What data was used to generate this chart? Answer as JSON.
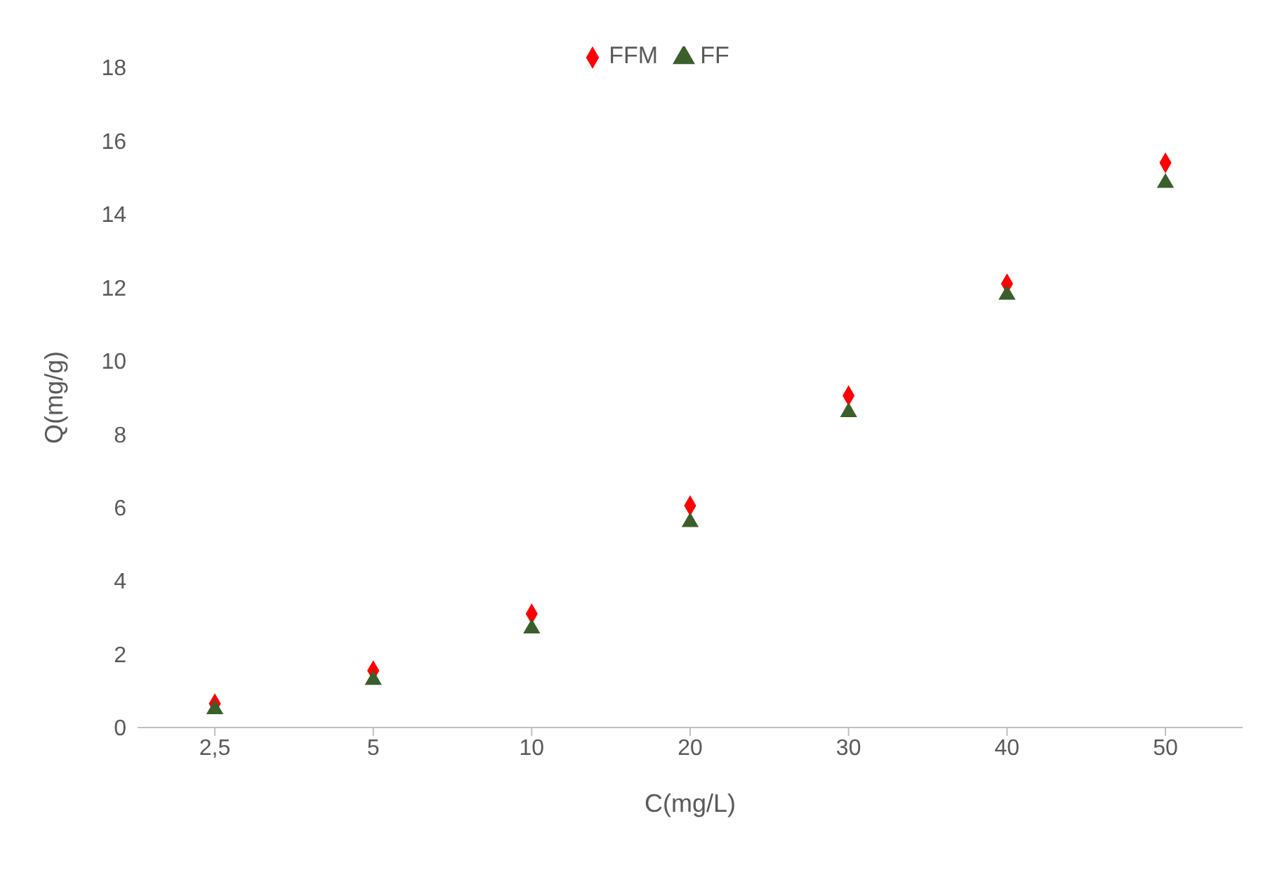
{
  "chart_data": {
    "type": "scatter",
    "xlabel": "C(mg/L)",
    "ylabel": "Q(mg/g)",
    "categories": [
      "2,5",
      "5",
      "10",
      "20",
      "30",
      "40",
      "50"
    ],
    "series": [
      {
        "name": "FFM",
        "color": "#ff0000",
        "marker": "diamond",
        "values": [
          0.65,
          1.55,
          3.1,
          6.05,
          9.05,
          12.1,
          15.4
        ]
      },
      {
        "name": "FF",
        "color": "#3b5e2b",
        "marker": "triangle",
        "values": [
          0.5,
          1.3,
          2.7,
          5.6,
          8.6,
          11.8,
          14.85
        ]
      }
    ],
    "ylim": [
      0,
      18
    ],
    "yticks": [
      0,
      2,
      4,
      6,
      8,
      10,
      12,
      14,
      16,
      18
    ],
    "grid": false,
    "legend": "top"
  }
}
